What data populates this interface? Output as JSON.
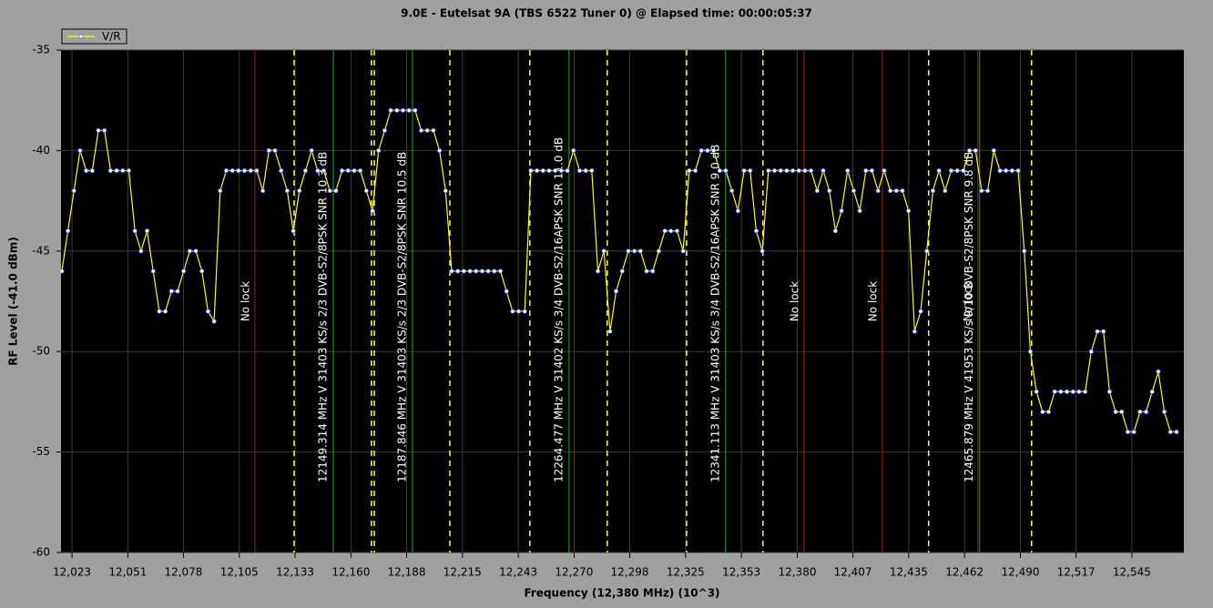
{
  "chart_data": {
    "type": "line",
    "title": "9.0E - Eutelsat 9A (TBS 6522 Tuner 0) @ Elapsed time: 00:00:05:37",
    "x_label": "Frequency (12,380 MHz) (10^3)",
    "y_label": "RF Level (-41.0 dBm)",
    "xlim": [
      12017.6,
      12570.6
    ],
    "ylim": [
      -60,
      -35
    ],
    "yticks": [
      -60,
      -55,
      -50,
      -45,
      -40,
      -35
    ],
    "xticks": [
      {
        "value": 12023,
        "label": "12,023"
      },
      {
        "value": 12050.5,
        "label": "12,051"
      },
      {
        "value": 12077.9,
        "label": "12,078"
      },
      {
        "value": 12105.4,
        "label": "12,105"
      },
      {
        "value": 12132.9,
        "label": "12,133"
      },
      {
        "value": 12160.4,
        "label": "12,160"
      },
      {
        "value": 12187.8,
        "label": "12,188"
      },
      {
        "value": 12215.3,
        "label": "12,215"
      },
      {
        "value": 12242.8,
        "label": "12,243"
      },
      {
        "value": 12270.3,
        "label": "12,270"
      },
      {
        "value": 12297.7,
        "label": "12,298"
      },
      {
        "value": 12325.2,
        "label": "12,325"
      },
      {
        "value": 12352.7,
        "label": "12,353"
      },
      {
        "value": 12380.2,
        "label": "12,380"
      },
      {
        "value": 12407.6,
        "label": "12,407"
      },
      {
        "value": 12435.1,
        "label": "12,435"
      },
      {
        "value": 12462.6,
        "label": "12,462"
      },
      {
        "value": 12490.1,
        "label": "12,490"
      },
      {
        "value": 12517.5,
        "label": "12,517"
      },
      {
        "value": 12545,
        "label": "12,545"
      }
    ],
    "grid": true,
    "legend": "top-left",
    "series": [
      {
        "name": "V/R",
        "color": "#ffff00",
        "x": [
          12018,
          12021,
          12024,
          12027,
          12030,
          12033,
          12036,
          12039,
          12042,
          12045,
          12048,
          12051,
          12054,
          12057,
          12060,
          12063,
          12066,
          12069,
          12072,
          12075,
          12078,
          12081,
          12084,
          12087,
          12090,
          12093,
          12096,
          12099,
          12102,
          12105,
          12108,
          12111,
          12114,
          12117,
          12120,
          12123,
          12126,
          12129,
          12132,
          12135,
          12138,
          12141,
          12144,
          12147,
          12150,
          12153,
          12156,
          12159,
          12162,
          12165,
          12168,
          12171,
          12174,
          12177,
          12180,
          12183,
          12186,
          12189,
          12192,
          12195,
          12198,
          12201,
          12204,
          12207,
          12210,
          12213,
          12216,
          12219,
          12222,
          12225,
          12228,
          12231,
          12234,
          12237,
          12240,
          12243,
          12246,
          12249,
          12252,
          12255,
          12258,
          12261,
          12264,
          12267,
          12270,
          12273,
          12276,
          12279,
          12282,
          12285,
          12288,
          12291,
          12294,
          12297,
          12300,
          12303,
          12306,
          12309,
          12312,
          12315,
          12318,
          12321,
          12324,
          12327,
          12330,
          12333,
          12336,
          12339,
          12342,
          12345,
          12348,
          12351,
          12354,
          12357,
          12360,
          12363,
          12366,
          12369,
          12372,
          12375,
          12378,
          12381,
          12384,
          12387,
          12390,
          12393,
          12396,
          12399,
          12402,
          12405,
          12408,
          12411,
          12414,
          12417,
          12420,
          12423,
          12426,
          12429,
          12432,
          12435,
          12438,
          12441,
          12444,
          12447,
          12450,
          12453,
          12456,
          12459,
          12462,
          12465,
          12468,
          12471,
          12474,
          12477,
          12480,
          12483,
          12486,
          12489,
          12492,
          12495,
          12498,
          12501,
          12504,
          12507,
          12510,
          12513,
          12516,
          12519,
          12522,
          12525,
          12528,
          12531,
          12534,
          12537,
          12540,
          12543,
          12546,
          12549,
          12552,
          12555,
          12558,
          12561,
          12564,
          12567
        ],
        "values": [
          -46,
          -44,
          -42,
          -40,
          -41,
          -41,
          -39,
          -39,
          -41,
          -41,
          -41,
          -41,
          -44,
          -45,
          -44,
          -46,
          -48,
          -48,
          -47,
          -47,
          -46,
          -45,
          -45,
          -46,
          -48,
          -48.5,
          -42,
          -41,
          -41,
          -41,
          -41,
          -41,
          -41,
          -42,
          -40,
          -40,
          -41,
          -42,
          -44,
          -42,
          -41,
          -40,
          -41,
          -41,
          -42,
          -42,
          -41,
          -41,
          -41,
          -41,
          -42,
          -43,
          -40,
          -39,
          -38,
          -38,
          -38,
          -38,
          -38,
          -39,
          -39,
          -39,
          -40,
          -42,
          -46,
          -46,
          -46,
          -46,
          -46,
          -46,
          -46,
          -46,
          -46,
          -47,
          -48,
          -48,
          -48,
          -41,
          -41,
          -41,
          -41,
          -41,
          -41,
          -41,
          -40,
          -41,
          -41,
          -41,
          -46,
          -45,
          -49,
          -47,
          -46,
          -45,
          -45,
          -45,
          -46,
          -46,
          -45,
          -44,
          -44,
          -44,
          -45,
          -41,
          -41,
          -40,
          -40,
          -40,
          -41,
          -41,
          -42,
          -43,
          -41,
          -41,
          -44,
          -45,
          -41,
          -41,
          -41,
          -41,
          -41,
          -41,
          -41,
          -41,
          -42,
          -41,
          -42,
          -44,
          -43,
          -41,
          -42,
          -43,
          -41,
          -41,
          -42,
          -41,
          -42,
          -42,
          -42,
          -43,
          -49,
          -48,
          -45,
          -42,
          -41,
          -42,
          -41,
          -41,
          -41,
          -40,
          -40,
          -42,
          -42,
          -40,
          -41,
          -41,
          -41,
          -41,
          -45,
          -50,
          -52,
          -53,
          -53,
          -52,
          -52,
          -52,
          -52,
          -52,
          -52,
          -50,
          -49,
          -49,
          -52,
          -53,
          -53,
          -54,
          -54,
          -53,
          -53,
          -52,
          -51,
          -53,
          -54,
          -54
        ]
      }
    ],
    "transponders": [
      {
        "low": 12132.4,
        "center": 12151.7,
        "high": 12170.5,
        "label": "12149.314 MHz V 31403 KS/s 2/3 DVB-S2/8PSK SNR 10.3 dB"
      },
      {
        "low": 12171.9,
        "center": 12190.7,
        "high": 12209.1,
        "label": "12187.846 MHz V 31403 KS/s 2/3 DVB-S2/8PSK SNR 10.5 dB"
      },
      {
        "low": 12248.5,
        "center": 12267.8,
        "high": 12286.6,
        "label": "12264.477 MHz V 31402 KS/s 3/4 DVB-S2/16APSK SNR 11.0 dB"
      },
      {
        "low": 12325.7,
        "center": 12344.9,
        "high": 12363.3,
        "label": "12341.113 MHz V 31403 KS/s 3/4 DVB-S2/16APSK SNR 9.0 dB"
      },
      {
        "low": 12444.9,
        "center": 12470.0,
        "high": 12495.6,
        "label": "12465.879 MHz V 41953 KS/s 9/10 DVB-S2/8PSK SNR 9.8 dB"
      }
    ],
    "no_lock": [
      {
        "freq": 12113.1,
        "label": "No lock"
      },
      {
        "freq": 12383.5,
        "label": "No lock"
      },
      {
        "freq": 12422.1,
        "label": "No lock"
      },
      {
        "freq": 12469.1,
        "label": "No lock"
      }
    ]
  }
}
